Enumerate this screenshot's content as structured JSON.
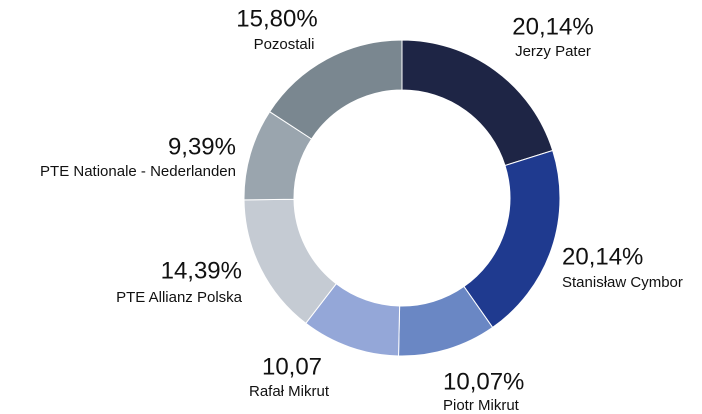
{
  "chart_data": {
    "type": "donut",
    "categories": [
      "Jerzy Pater",
      "Stanisław Cymbor",
      "Piotr Mikrut",
      "Rafał Mikrut",
      "PTE Allianz Polska",
      "PTE Nationale - Nederlanden",
      "Pozostali"
    ],
    "values": [
      20.14,
      20.14,
      10.07,
      10.07,
      14.39,
      9.39,
      15.8
    ],
    "value_labels": [
      "20,14%",
      "20,14%",
      "10,07%",
      "10,07",
      "14,39%",
      "9,39%",
      "15,80%"
    ],
    "colors": [
      "#1e2545",
      "#1f3a8f",
      "#6a87c4",
      "#94a7d8",
      "#c5cbd3",
      "#9aa5ae",
      "#7a8790"
    ]
  }
}
